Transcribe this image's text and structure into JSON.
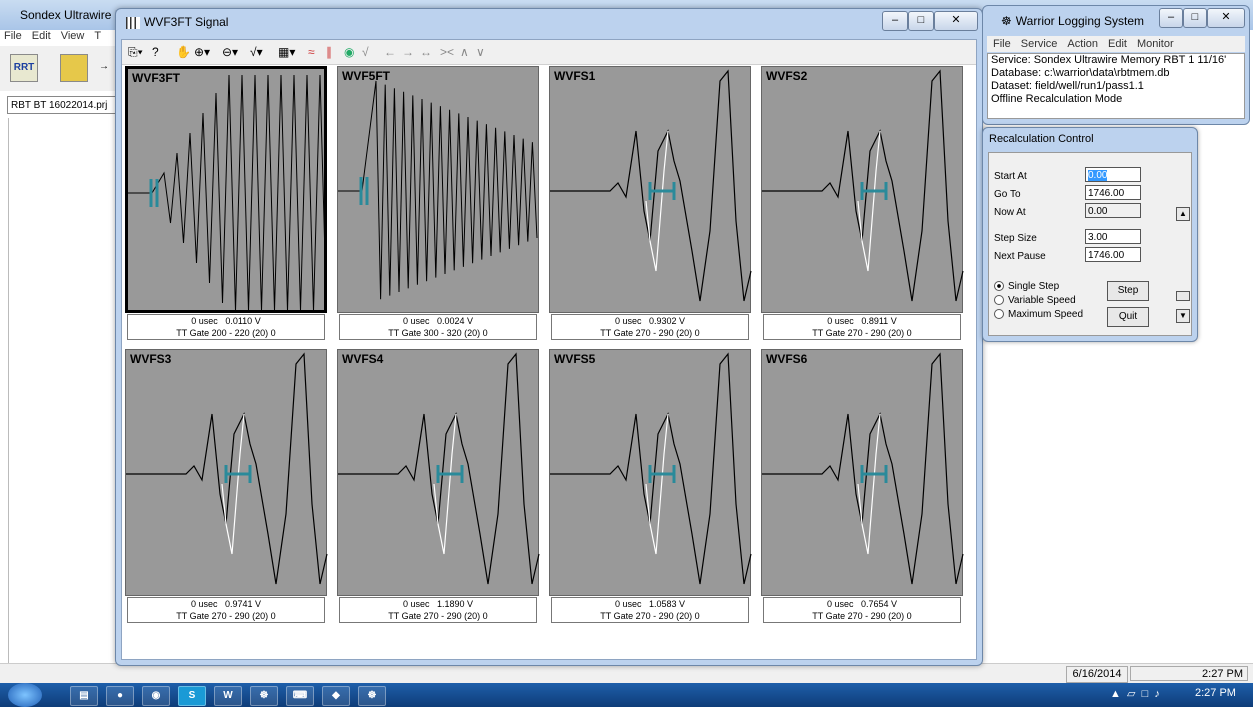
{
  "background_app": {
    "title": "Sondex Ultrawire I",
    "menu": [
      "File",
      "Edit",
      "View",
      "T"
    ],
    "toolbar_label": "RRT",
    "project_field": "RBT BT 16022014.prj",
    "status_date": "6/16/2014",
    "status_time": "2:27 PM"
  },
  "signal_window": {
    "title": "WVF3FT Signal",
    "toolbar_icons": [
      "display-icon",
      "help-icon",
      "pan-icon",
      "zoom-in-icon",
      "zoom-out-icon",
      "waveform-icon",
      "grid-icon",
      "filter-icon",
      "gate-icon",
      "color-icon",
      "trace-icon",
      "arrow-left-icon",
      "arrow-right-icon",
      "expand-icon",
      "compress-icon",
      "up-icon",
      "down-icon"
    ],
    "panels": [
      {
        "label": "WVF3FT",
        "time": "0 usec",
        "value": "0.0110 V",
        "gate": "TT Gate  200 - 220  (20) 0",
        "selected": true,
        "kind": "dense"
      },
      {
        "label": "WVF5FT",
        "time": "0 usec",
        "value": "0.0024 V",
        "gate": "TT Gate  300 - 320  (20) 0",
        "selected": false,
        "kind": "dense2"
      },
      {
        "label": "WVFS1",
        "time": "0 usec",
        "value": "0.9302 V",
        "gate": "TT Gate  270 - 290  (20) 0",
        "selected": false,
        "kind": "wave"
      },
      {
        "label": "WVFS2",
        "time": "0 usec",
        "value": "0.8911 V",
        "gate": "TT Gate  270 - 290  (20) 0",
        "selected": false,
        "kind": "wave"
      },
      {
        "label": "WVFS3",
        "time": "0 usec",
        "value": "0.9741 V",
        "gate": "TT Gate  270 - 290  (20) 0",
        "selected": false,
        "kind": "wave"
      },
      {
        "label": "WVFS4",
        "time": "0 usec",
        "value": "1.1890 V",
        "gate": "TT Gate  270 - 290  (20) 0",
        "selected": false,
        "kind": "wave"
      },
      {
        "label": "WVFS5",
        "time": "0 usec",
        "value": "1.0583 V",
        "gate": "TT Gate  270 - 290  (20) 0",
        "selected": false,
        "kind": "wave"
      },
      {
        "label": "WVFS6",
        "time": "0 usec",
        "value": "0.7654 V",
        "gate": "TT Gate  270 - 290  (20) 0",
        "selected": false,
        "kind": "wave"
      }
    ]
  },
  "warrior_window": {
    "title": "Warrior Logging System",
    "menu": [
      "File",
      "Service",
      "Action",
      "Edit",
      "Monitor"
    ],
    "service": "Service:  Sondex Ultrawire Memory RBT 1 11/16'",
    "database": "Database:  c:\\warrior\\data\\rbtmem.db",
    "dataset": "Dataset:  field/well/run1/pass1.1",
    "mode": "Offline Recalculation Mode"
  },
  "recalc_window": {
    "title": "Recalculation Control",
    "start_at_label": "Start At",
    "start_at_value": "0.00",
    "go_to_label": "Go To",
    "go_to_value": "1746.00",
    "now_at_label": "Now At",
    "now_at_value": "0.00",
    "step_size_label": "Step Size",
    "step_size_value": "3.00",
    "next_pause_label": "Next Pause",
    "next_pause_value": "1746.00",
    "mode_single": "Single Step",
    "mode_variable": "Variable Speed",
    "mode_maximum": "Maximum Speed",
    "step_button": "Step",
    "quit_button": "Quit"
  },
  "taskbar": {
    "time": "2:27 PM",
    "buttons": [
      "explorer-icon",
      "firefox-icon",
      "chrome-icon",
      "skype-icon",
      "word-icon",
      "warrior-icon",
      "terminal-icon",
      "sondex-icon",
      "warrior2-icon"
    ]
  }
}
